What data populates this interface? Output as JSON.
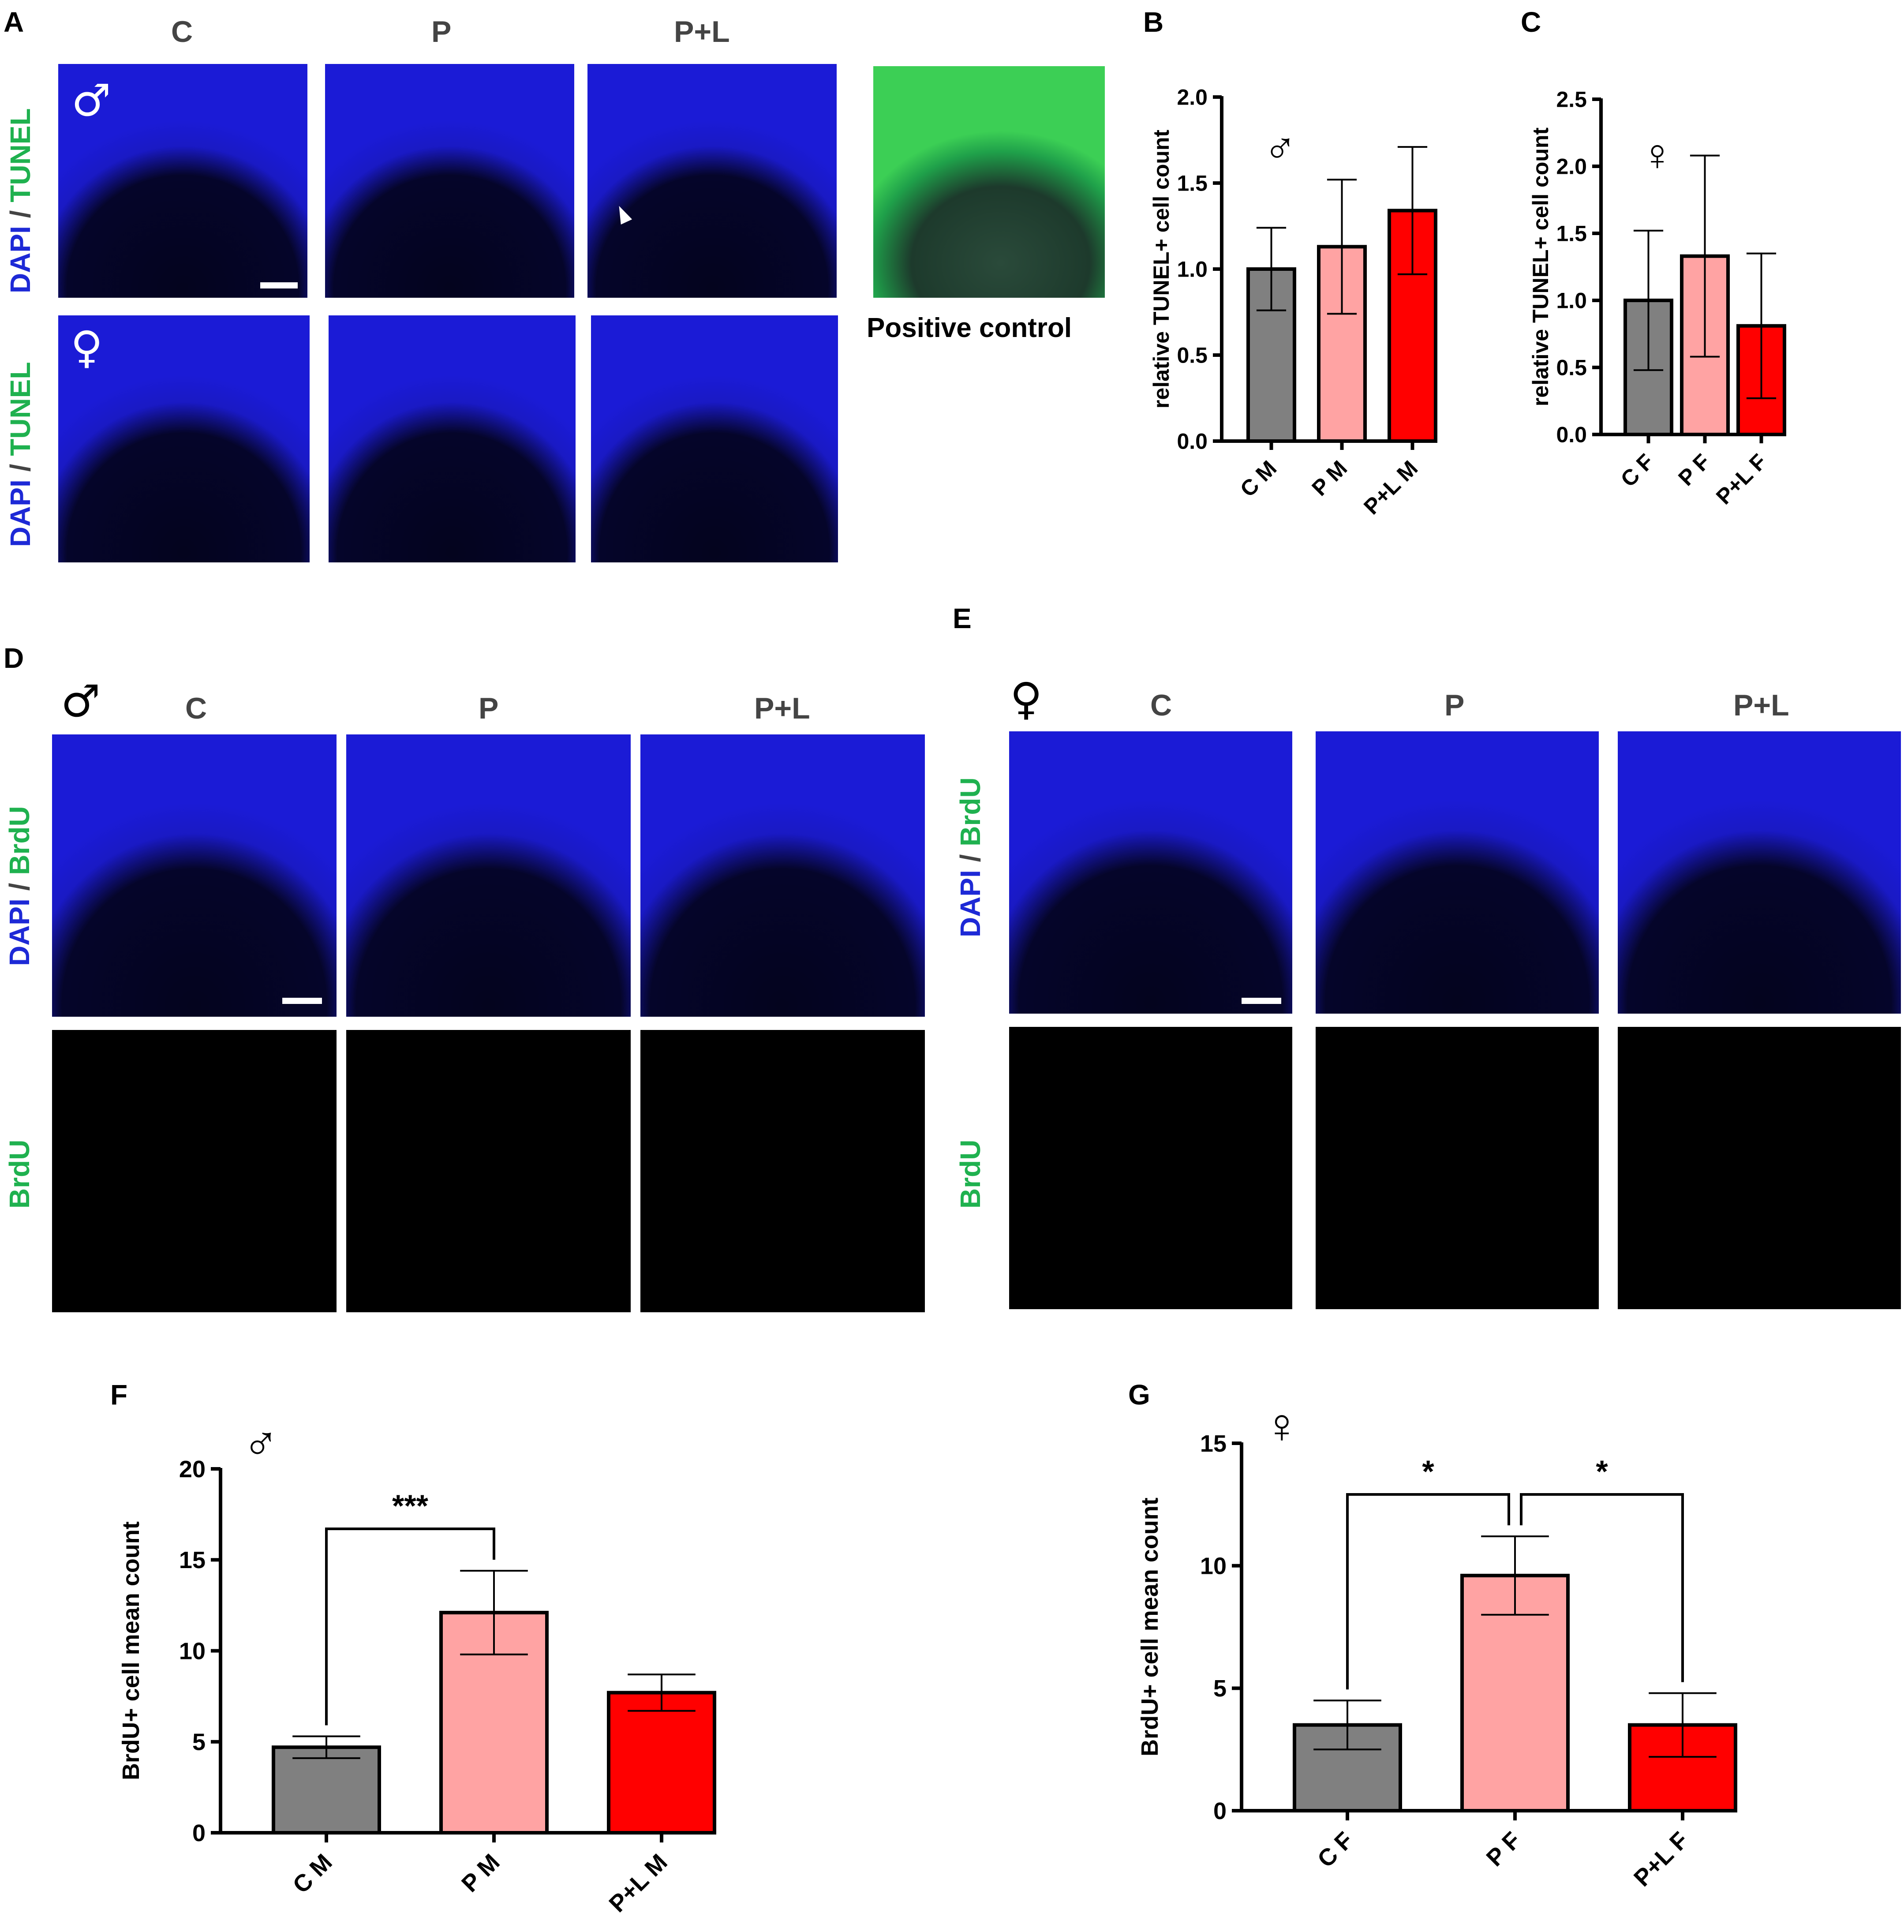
{
  "panel_letters": [
    "A",
    "B",
    "C",
    "D",
    "E",
    "F",
    "G"
  ],
  "panelA": {
    "columns": [
      "C",
      "P",
      "P+L"
    ],
    "row_stain_a": "DAPI",
    "row_sep": "/",
    "row_stain_b": "TUNEL",
    "male_symbol": "♂",
    "female_symbol": "♀",
    "positive_control": "Positive control"
  },
  "panelD": {
    "symbol": "♂",
    "columns": [
      "C",
      "P",
      "P+L"
    ],
    "stain_a": "DAPI",
    "sep": "/",
    "stain_b": "BrdU",
    "row2": "BrdU"
  },
  "panelE": {
    "symbol": "♀",
    "columns": [
      "C",
      "P",
      "P+L"
    ],
    "stain_a": "DAPI",
    "sep": "/",
    "stain_b": "BrdU",
    "row2": "BrdU"
  },
  "colors": {
    "gray": "#808080",
    "pink": "#ffa3a3",
    "red": "#ff0000",
    "dapi_blue": "#1d29d6",
    "stain_green": "#1fb14f"
  },
  "chart_data": [
    {
      "id": "B",
      "type": "bar",
      "symbol": "♂",
      "ylabel": "relative TUNEL+ cell count",
      "categories": [
        "C M",
        "P M",
        "P+L M"
      ],
      "values": [
        1.0,
        1.13,
        1.34
      ],
      "errors": [
        0.24,
        0.39,
        0.37
      ],
      "ylim": [
        0,
        2.0
      ],
      "ticks": [
        "0.0",
        "0.5",
        "1.0",
        "1.5",
        "2.0"
      ],
      "colors": [
        "#808080",
        "#ffa3a3",
        "#ff0000"
      ],
      "significance": []
    },
    {
      "id": "C",
      "type": "bar",
      "symbol": "♀",
      "ylabel": "relative TUNEL+ cell count",
      "categories": [
        "C F",
        "P F",
        "P+L F"
      ],
      "values": [
        1.0,
        1.33,
        0.81
      ],
      "errors": [
        0.52,
        0.75,
        0.54
      ],
      "ylim": [
        0,
        2.5
      ],
      "ticks": [
        "0.0",
        "0.5",
        "1.0",
        "1.5",
        "2.0",
        "2.5"
      ],
      "colors": [
        "#808080",
        "#ffa3a3",
        "#ff0000"
      ],
      "significance": []
    },
    {
      "id": "F",
      "type": "bar",
      "symbol": "♂",
      "ylabel": "BrdU+ cell mean count",
      "categories": [
        "C M",
        "P M",
        "P+L M"
      ],
      "values": [
        4.7,
        12.1,
        7.7
      ],
      "errors": [
        0.6,
        2.3,
        1.0
      ],
      "ylim": [
        0,
        20
      ],
      "ticks": [
        "0",
        "5",
        "10",
        "15",
        "20"
      ],
      "colors": [
        "#808080",
        "#ffa3a3",
        "#ff0000"
      ],
      "significance": [
        {
          "from": 0,
          "to": 1,
          "label": "***"
        }
      ]
    },
    {
      "id": "G",
      "type": "bar",
      "symbol": "♀",
      "ylabel": "BrdU+ cell mean count",
      "categories": [
        "C F",
        "P F",
        "P+L F"
      ],
      "values": [
        3.5,
        9.6,
        3.5
      ],
      "errors": [
        1.0,
        1.6,
        1.3
      ],
      "ylim": [
        0,
        15
      ],
      "ticks": [
        "0",
        "5",
        "10",
        "15"
      ],
      "colors": [
        "#808080",
        "#ffa3a3",
        "#ff0000"
      ],
      "significance": [
        {
          "from": 0,
          "to": 1,
          "label": "*"
        },
        {
          "from": 1,
          "to": 2,
          "label": "*"
        }
      ]
    }
  ]
}
